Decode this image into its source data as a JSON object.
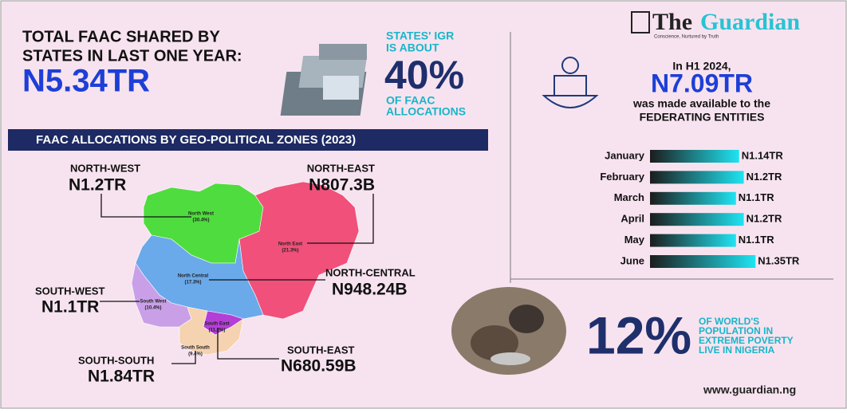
{
  "header": {
    "title_lines": [
      "TOTAL FAAC SHARED BY",
      "STATES IN LAST ONE YEAR:"
    ],
    "total": "N5.34TR"
  },
  "igr": {
    "intro_lines": [
      "STATES' IGR",
      "IS ABOUT"
    ],
    "share": "40%",
    "outro_lines": [
      "OF FAAC",
      "ALLOCATIONS"
    ]
  },
  "map": {
    "title": "FAAC ALLOCATIONS BY GEO-POLITICAL ZONES (2023)",
    "zones": [
      {
        "name": "NORTH-WEST",
        "amount": "N1.2TR",
        "map_name": "North West",
        "map_share": "(30.4%)"
      },
      {
        "name": "NORTH-EAST",
        "amount": "N807.3B",
        "map_name": "North East",
        "map_share": "(21.3%)"
      },
      {
        "name": "NORTH-CENTRAL",
        "amount": "N948.24B",
        "map_name": "North Central",
        "map_share": "(17.3%)"
      },
      {
        "name": "SOUTH-WEST",
        "amount": "N1.1TR",
        "map_name": "South West",
        "map_share": "(10.4%)"
      },
      {
        "name": "SOUTH-EAST",
        "amount": "N680.59B",
        "map_name": "South East",
        "map_share": "(11.2%)"
      },
      {
        "name": "SOUTH-SOUTH",
        "amount": "N1.84TR",
        "map_name": "South South",
        "map_share": "(9.4%)"
      }
    ]
  },
  "logo": {
    "the": "The",
    "name": "Guardian",
    "tagline": "Conscience, Nurtured by Truth"
  },
  "h1": {
    "intro": "In H1 2024,",
    "amount": "N7.09TR",
    "lines": [
      "was made available to the",
      "FEDERATING ENTITIES"
    ]
  },
  "chart_data": {
    "type": "bar",
    "orientation": "horizontal",
    "categories": [
      "January",
      "February",
      "March",
      "April",
      "May",
      "June"
    ],
    "values": [
      1.14,
      1.2,
      1.1,
      1.2,
      1.1,
      1.35
    ],
    "value_labels": [
      "N1.14TR",
      "N1.2TR",
      "N1.1TR",
      "N1.2TR",
      "N1.1TR",
      "N1.35TR"
    ],
    "colors": [
      "#1c1c1c",
      "#1fe4f2"
    ]
  },
  "poverty": {
    "share": "12%",
    "lines": [
      "OF WORLD'S",
      "POPULATION IN",
      "EXTREME POVERTY",
      "LIVE IN NIGERIA"
    ]
  },
  "footer": {
    "url": "www.guardian.ng"
  }
}
